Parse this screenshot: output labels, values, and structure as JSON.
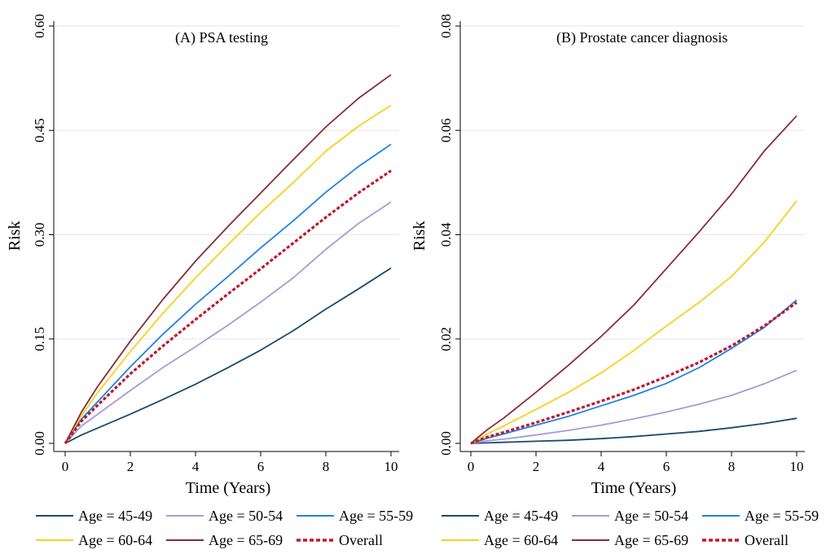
{
  "chart_data": [
    {
      "type": "line",
      "title": "(A) PSA testing",
      "xlabel": "Time (Years)",
      "ylabel": "Risk",
      "xlim": [
        0,
        10
      ],
      "ylim": [
        0,
        0.6
      ],
      "x_ticks": [
        "0",
        "2",
        "4",
        "6",
        "8",
        "10"
      ],
      "y_ticks": [
        "0.00",
        "0.15",
        "0.30",
        "0.45",
        "0.60"
      ],
      "grid": "horizontal",
      "x": [
        0,
        0.5,
        1,
        2,
        3,
        4,
        5,
        6,
        7,
        8,
        9,
        10
      ],
      "series": [
        {
          "name": "Age = 45-49",
          "color": "#1a4a6e",
          "style": "solid",
          "values": [
            0,
            0.012,
            0.022,
            0.042,
            0.063,
            0.085,
            0.109,
            0.134,
            0.162,
            0.193,
            0.222,
            0.252
          ]
        },
        {
          "name": "Age = 50-54",
          "color": "#a79bd6",
          "style": "solid",
          "values": [
            0,
            0.025,
            0.042,
            0.076,
            0.109,
            0.139,
            0.17,
            0.203,
            0.238,
            0.279,
            0.316,
            0.347
          ]
        },
        {
          "name": "Age = 55-59",
          "color": "#1f82e3",
          "style": "solid",
          "values": [
            0,
            0.035,
            0.06,
            0.11,
            0.157,
            0.2,
            0.24,
            0.281,
            0.32,
            0.361,
            0.398,
            0.43
          ]
        },
        {
          "name": "Age = 60-64",
          "color": "#f5d21f",
          "style": "solid",
          "values": [
            0,
            0.04,
            0.073,
            0.132,
            0.187,
            0.238,
            0.286,
            0.332,
            0.375,
            0.42,
            0.456,
            0.486
          ]
        },
        {
          "name": "Age = 65-69",
          "color": "#8b2b33",
          "style": "solid",
          "values": [
            0,
            0.045,
            0.082,
            0.147,
            0.207,
            0.262,
            0.312,
            0.36,
            0.408,
            0.455,
            0.496,
            0.53
          ]
        },
        {
          "name": "Overall",
          "color": "#c0182e",
          "style": "dashed",
          "values": [
            0,
            0.032,
            0.055,
            0.1,
            0.14,
            0.178,
            0.215,
            0.251,
            0.288,
            0.325,
            0.36,
            0.392
          ]
        }
      ]
    },
    {
      "type": "line",
      "title": "(B) Prostate cancer diagnosis",
      "xlabel": "Time (Years)",
      "ylabel": "Risk",
      "xlim": [
        0,
        10
      ],
      "ylim": [
        0,
        0.08
      ],
      "x_ticks": [
        "0",
        "2",
        "4",
        "6",
        "8",
        "10"
      ],
      "y_ticks": [
        "0.00",
        "0.02",
        "0.04",
        "0.06",
        "0.08"
      ],
      "grid": "horizontal",
      "x": [
        0,
        0.5,
        1,
        2,
        3,
        4,
        5,
        6,
        7,
        8,
        9,
        10
      ],
      "series": [
        {
          "name": "Age = 45-49",
          "color": "#1a4a6e",
          "style": "solid",
          "values": [
            0,
            0.0001,
            0.0002,
            0.0004,
            0.0006,
            0.0009,
            0.0013,
            0.0018,
            0.0023,
            0.003,
            0.0038,
            0.0048
          ]
        },
        {
          "name": "Age = 50-54",
          "color": "#a79bd6",
          "style": "solid",
          "values": [
            0,
            0.0005,
            0.0008,
            0.0016,
            0.0025,
            0.0035,
            0.0047,
            0.006,
            0.0075,
            0.0092,
            0.0114,
            0.014
          ]
        },
        {
          "name": "Age = 55-59",
          "color": "#1f82e3",
          "style": "solid",
          "values": [
            0,
            0.001,
            0.0018,
            0.0035,
            0.0052,
            0.0072,
            0.0092,
            0.0115,
            0.0145,
            0.0182,
            0.0222,
            0.0275
          ]
        },
        {
          "name": "Age = 60-64",
          "color": "#f5d21f",
          "style": "solid",
          "values": [
            0,
            0.0018,
            0.0033,
            0.0065,
            0.0098,
            0.0135,
            0.0178,
            0.0225,
            0.027,
            0.032,
            0.0385,
            0.0465
          ]
        },
        {
          "name": "Age = 65-69",
          "color": "#8b2b33",
          "style": "solid",
          "values": [
            0,
            0.0026,
            0.0048,
            0.0098,
            0.015,
            0.0205,
            0.0265,
            0.0335,
            0.0405,
            0.0478,
            0.056,
            0.0628
          ]
        },
        {
          "name": "Overall",
          "color": "#c0182e",
          "style": "dashed",
          "values": [
            0,
            0.0012,
            0.0021,
            0.004,
            0.006,
            0.0081,
            0.0103,
            0.0128,
            0.0155,
            0.0187,
            0.0225,
            0.027
          ]
        }
      ]
    }
  ]
}
